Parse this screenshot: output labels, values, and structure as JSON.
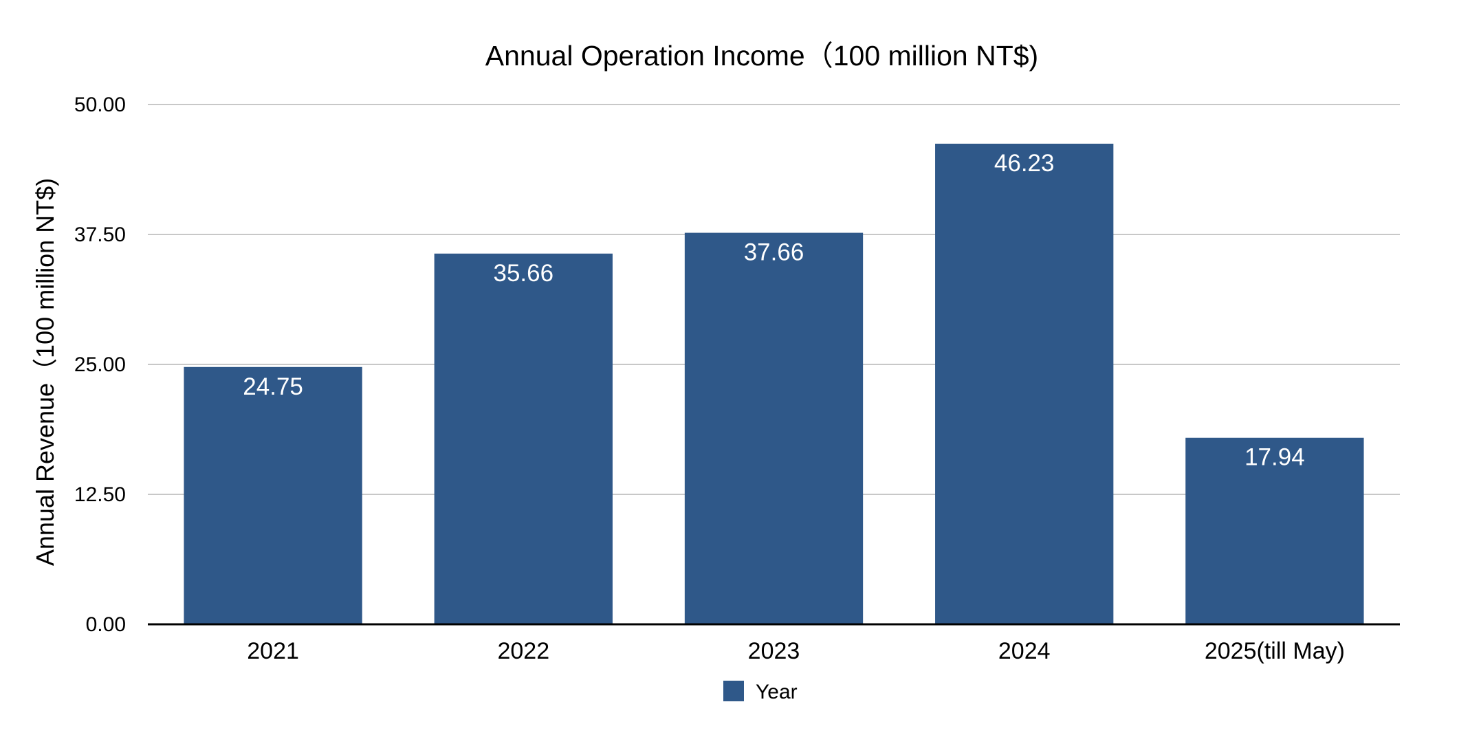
{
  "chart_data": {
    "type": "bar",
    "title": "Annual Operation Income（100 million NT$)",
    "xlabel": "",
    "ylabel": "Annual Revenue（100 million NT$)",
    "categories": [
      "2021",
      "2022",
      "2023",
      "2024",
      "2025(till May)"
    ],
    "series": [
      {
        "name": "Year",
        "values": [
          24.75,
          35.66,
          37.66,
          46.23,
          17.94
        ],
        "color": "#2f5889"
      }
    ],
    "data_labels": [
      "24.75",
      "35.66",
      "37.66",
      "46.23",
      "17.94"
    ],
    "ylim": [
      0,
      50
    ],
    "yticks": [
      0,
      12.5,
      25,
      37.5,
      50
    ],
    "ytick_labels": [
      "0.00",
      "12.50",
      "25.00",
      "37.50",
      "50.00"
    ],
    "grid": true,
    "legend_position": "bottom",
    "colors": {
      "bar": "#2f5889",
      "grid": "#c8c8c8",
      "axis": "#000000",
      "data_label": "#ffffff"
    }
  }
}
